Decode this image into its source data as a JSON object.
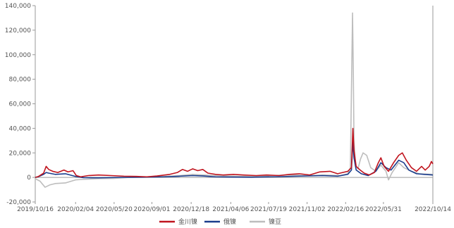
{
  "chart_data": {
    "type": "line",
    "ylim": [
      -20000,
      140000
    ],
    "yticks": [
      {
        "value": 140000,
        "label": "140,000"
      },
      {
        "value": 120000,
        "label": "120,000"
      },
      {
        "value": 100000,
        "label": "100,000"
      },
      {
        "value": 80000,
        "label": "80,000"
      },
      {
        "value": 60000,
        "label": "60,000"
      },
      {
        "value": 40000,
        "label": "40,000"
      },
      {
        "value": 20000,
        "label": "20,000"
      },
      {
        "value": 0,
        "label": "0"
      },
      {
        "value": -20000,
        "label": "-20,000"
      }
    ],
    "xlim": [
      "2019-10-16",
      "2022-10-14"
    ],
    "xticks": [
      "2019/10/16",
      "2020/02/04",
      "2020/05/20",
      "2020/09/01",
      "2020/12/18",
      "2021/04/06",
      "2021/07/19",
      "2021/11/02",
      "2022/02/16",
      "2022/05/31",
      "2022/10/14"
    ],
    "grid": false,
    "legend_position": "bottom-center",
    "series": [
      {
        "name": "金川镍",
        "color": "#c0141e",
        "points": [
          [
            "2019-10-16",
            0
          ],
          [
            "2019-10-25",
            800
          ],
          [
            "2019-11-08",
            3500
          ],
          [
            "2019-11-15",
            9000
          ],
          [
            "2019-11-22",
            6500
          ],
          [
            "2019-12-03",
            5000
          ],
          [
            "2019-12-17",
            4000
          ],
          [
            "2020-01-03",
            6000
          ],
          [
            "2020-01-14",
            4500
          ],
          [
            "2020-01-28",
            5500
          ],
          [
            "2020-02-06",
            1500
          ],
          [
            "2020-02-18",
            500
          ],
          [
            "2020-03-10",
            1500
          ],
          [
            "2020-04-07",
            2000
          ],
          [
            "2020-05-12",
            1500
          ],
          [
            "2020-06-16",
            1000
          ],
          [
            "2020-07-21",
            800
          ],
          [
            "2020-08-18",
            500
          ],
          [
            "2020-09-15",
            1200
          ],
          [
            "2020-10-20",
            2500
          ],
          [
            "2020-11-10",
            4000
          ],
          [
            "2020-11-24",
            6500
          ],
          [
            "2020-12-08",
            5000
          ],
          [
            "2020-12-22",
            7000
          ],
          [
            "2021-01-05",
            5500
          ],
          [
            "2021-01-19",
            6500
          ],
          [
            "2021-02-02",
            3500
          ],
          [
            "2021-02-23",
            2500
          ],
          [
            "2021-03-16",
            2000
          ],
          [
            "2021-04-13",
            2500
          ],
          [
            "2021-05-11",
            2000
          ],
          [
            "2021-06-15",
            1500
          ],
          [
            "2021-07-13",
            2000
          ],
          [
            "2021-08-17",
            1500
          ],
          [
            "2021-09-14",
            2500
          ],
          [
            "2021-10-12",
            3000
          ],
          [
            "2021-11-09",
            2000
          ],
          [
            "2021-12-07",
            4500
          ],
          [
            "2022-01-04",
            5000
          ],
          [
            "2022-01-25",
            3000
          ],
          [
            "2022-02-08",
            4000
          ],
          [
            "2022-02-22",
            5000
          ],
          [
            "2022-03-04",
            8000
          ],
          [
            "2022-03-08",
            40000
          ],
          [
            "2022-03-11",
            22000
          ],
          [
            "2022-03-17",
            9000
          ],
          [
            "2022-03-28",
            6000
          ],
          [
            "2022-04-08",
            3500
          ],
          [
            "2022-04-22",
            2000
          ],
          [
            "2022-05-06",
            4000
          ],
          [
            "2022-05-17",
            12000
          ],
          [
            "2022-05-24",
            16000
          ],
          [
            "2022-06-02",
            9000
          ],
          [
            "2022-06-14",
            5000
          ],
          [
            "2022-06-28",
            12000
          ],
          [
            "2022-07-12",
            18000
          ],
          [
            "2022-07-22",
            20000
          ],
          [
            "2022-08-02",
            14000
          ],
          [
            "2022-08-16",
            8000
          ],
          [
            "2022-08-30",
            5000
          ],
          [
            "2022-09-13",
            9000
          ],
          [
            "2022-09-23",
            6000
          ],
          [
            "2022-10-04",
            9000
          ],
          [
            "2022-10-10",
            13000
          ],
          [
            "2022-10-14",
            11000
          ]
        ]
      },
      {
        "name": "俄镍",
        "color": "#1a3c8c",
        "points": [
          [
            "2019-10-16",
            0
          ],
          [
            "2019-10-25",
            600
          ],
          [
            "2019-11-08",
            2500
          ],
          [
            "2019-11-15",
            4000
          ],
          [
            "2019-11-22",
            3500
          ],
          [
            "2019-12-10",
            2500
          ],
          [
            "2020-01-07",
            3000
          ],
          [
            "2020-02-04",
            800
          ],
          [
            "2020-02-25",
            -200
          ],
          [
            "2020-04-07",
            -300
          ],
          [
            "2020-06-02",
            0
          ],
          [
            "2020-08-04",
            200
          ],
          [
            "2020-10-06",
            500
          ],
          [
            "2020-11-17",
            1000
          ],
          [
            "2020-12-22",
            1500
          ],
          [
            "2021-01-19",
            1200
          ],
          [
            "2021-02-23",
            500
          ],
          [
            "2021-04-06",
            300
          ],
          [
            "2021-06-01",
            200
          ],
          [
            "2021-08-03",
            500
          ],
          [
            "2021-10-05",
            1000
          ],
          [
            "2021-12-14",
            1500
          ],
          [
            "2022-01-25",
            1000
          ],
          [
            "2022-02-22",
            2500
          ],
          [
            "2022-03-04",
            6000
          ],
          [
            "2022-03-08",
            30000
          ],
          [
            "2022-03-11",
            16000
          ],
          [
            "2022-03-17",
            6000
          ],
          [
            "2022-03-31",
            3000
          ],
          [
            "2022-04-19",
            1500
          ],
          [
            "2022-05-10",
            5000
          ],
          [
            "2022-05-24",
            12000
          ],
          [
            "2022-06-07",
            8000
          ],
          [
            "2022-06-21",
            6000
          ],
          [
            "2022-07-12",
            14000
          ],
          [
            "2022-07-26",
            12000
          ],
          [
            "2022-08-09",
            6000
          ],
          [
            "2022-08-30",
            3000
          ],
          [
            "2022-09-20",
            2500
          ],
          [
            "2022-10-14",
            2000
          ]
        ]
      },
      {
        "name": "镍豆",
        "color": "#bdbdbd",
        "points": [
          [
            "2019-10-16",
            -1000
          ],
          [
            "2019-10-29",
            -3000
          ],
          [
            "2019-11-12",
            -8000
          ],
          [
            "2019-11-26",
            -6000
          ],
          [
            "2019-12-10",
            -5000
          ],
          [
            "2020-01-07",
            -4500
          ],
          [
            "2020-02-04",
            -2000
          ],
          [
            "2020-03-03",
            -1500
          ],
          [
            "2020-04-07",
            -1000
          ],
          [
            "2020-05-19",
            -800
          ],
          [
            "2020-06-30",
            0
          ],
          [
            "2020-08-18",
            500
          ],
          [
            "2020-10-06",
            800
          ],
          [
            "2020-11-17",
            1500
          ],
          [
            "2020-12-22",
            2500
          ],
          [
            "2021-01-19",
            2000
          ],
          [
            "2021-03-02",
            1500
          ],
          [
            "2021-04-20",
            1000
          ],
          [
            "2021-06-08",
            800
          ],
          [
            "2021-07-27",
            1500
          ],
          [
            "2021-09-14",
            2000
          ],
          [
            "2021-11-02",
            1500
          ],
          [
            "2021-12-21",
            2000
          ],
          [
            "2022-02-01",
            1500
          ],
          [
            "2022-02-22",
            3000
          ],
          [
            "2022-03-01",
            8000
          ],
          [
            "2022-03-07",
            134000
          ],
          [
            "2022-03-09",
            90000
          ],
          [
            "2022-03-11",
            30000
          ],
          [
            "2022-03-15",
            10000
          ],
          [
            "2022-03-22",
            7000
          ],
          [
            "2022-03-29",
            15000
          ],
          [
            "2022-04-05",
            20000
          ],
          [
            "2022-04-15",
            18000
          ],
          [
            "2022-04-26",
            8000
          ],
          [
            "2022-05-10",
            5000
          ],
          [
            "2022-05-24",
            10000
          ],
          [
            "2022-06-07",
            5000
          ],
          [
            "2022-06-14",
            -2000
          ],
          [
            "2022-06-24",
            4000
          ],
          [
            "2022-07-12",
            12000
          ],
          [
            "2022-07-26",
            8000
          ],
          [
            "2022-08-16",
            5000
          ],
          [
            "2022-09-06",
            3000
          ],
          [
            "2022-10-14",
            2500
          ]
        ]
      }
    ]
  }
}
